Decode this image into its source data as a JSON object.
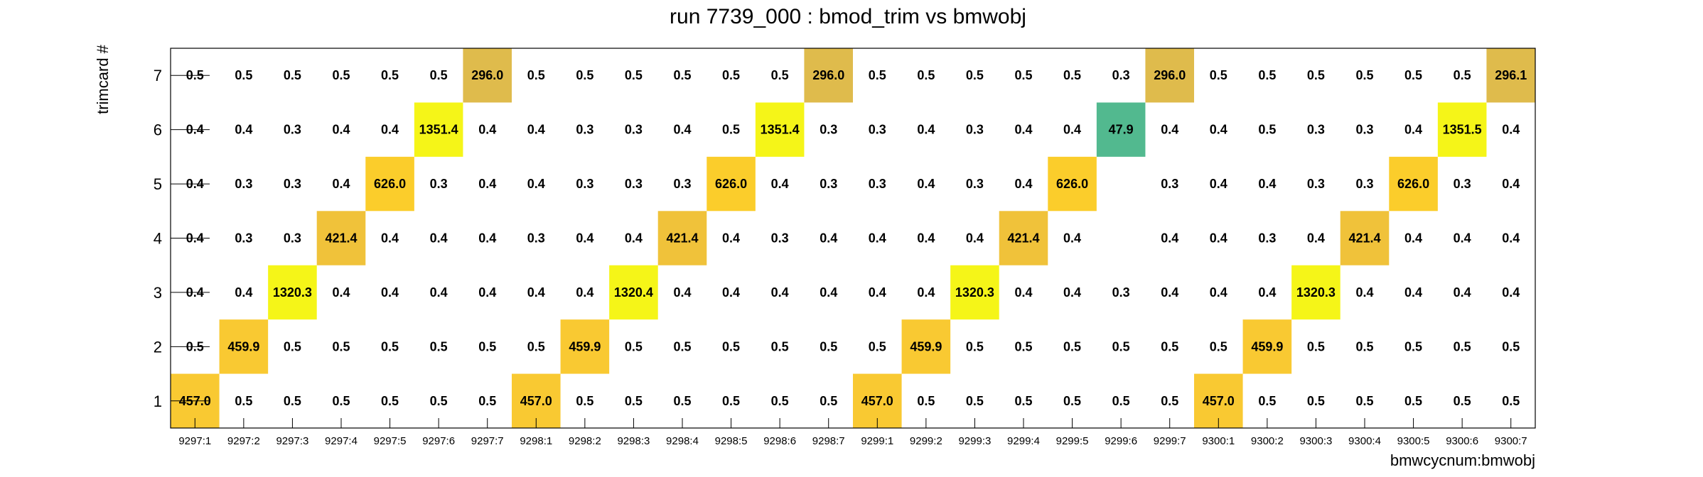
{
  "chart_data": {
    "type": "heatmap",
    "title": "run 7739_000 : bmod_trim vs bmwobj",
    "xlabel": "bmwcycnum:bmwobj",
    "ylabel": "trimcard #",
    "categories": [
      "9297:1",
      "9297:2",
      "9297:3",
      "9297:4",
      "9297:5",
      "9297:6",
      "9297:7",
      "9298:1",
      "9298:2",
      "9298:3",
      "9298:4",
      "9298:5",
      "9298:6",
      "9298:7",
      "9299:1",
      "9299:2",
      "9299:3",
      "9299:4",
      "9299:5",
      "9299:6",
      "9299:7",
      "9300:1",
      "9300:2",
      "9300:3",
      "9300:4",
      "9300:5",
      "9300:6",
      "9300:7"
    ],
    "y_categories": [
      "1",
      "2",
      "3",
      "4",
      "5",
      "6",
      "7"
    ],
    "rows": {
      "7": [
        "0.5",
        "0.5",
        "0.5",
        "0.5",
        "0.5",
        "0.5",
        "296.0",
        "0.5",
        "0.5",
        "0.5",
        "0.5",
        "0.5",
        "0.5",
        "296.0",
        "0.5",
        "0.5",
        "0.5",
        "0.5",
        "0.5",
        "0.3",
        "296.0",
        "0.5",
        "0.5",
        "0.5",
        "0.5",
        "0.5",
        "0.5",
        "296.1"
      ],
      "6": [
        "0.4",
        "0.4",
        "0.3",
        "0.4",
        "0.4",
        "1351.4",
        "0.4",
        "0.4",
        "0.3",
        "0.3",
        "0.4",
        "0.5",
        "1351.4",
        "0.3",
        "0.3",
        "0.4",
        "0.3",
        "0.4",
        "0.4",
        "47.9",
        "0.4",
        "0.4",
        "0.5",
        "0.3",
        "0.3",
        "0.4",
        "1351.5",
        "0.4"
      ],
      "5": [
        "0.4",
        "0.3",
        "0.3",
        "0.4",
        "626.0",
        "0.3",
        "0.4",
        "0.4",
        "0.3",
        "0.3",
        "0.3",
        "626.0",
        "0.4",
        "0.3",
        "0.3",
        "0.4",
        "0.3",
        "0.4",
        "626.0",
        "",
        "0.3",
        "0.4",
        "0.4",
        "0.3",
        "0.3",
        "626.0",
        "0.3",
        "0.4"
      ],
      "4": [
        "0.4",
        "0.3",
        "0.3",
        "421.4",
        "0.4",
        "0.4",
        "0.4",
        "0.3",
        "0.4",
        "0.4",
        "421.4",
        "0.4",
        "0.3",
        "0.4",
        "0.4",
        "0.4",
        "0.4",
        "421.4",
        "0.4",
        "",
        "0.4",
        "0.4",
        "0.3",
        "0.4",
        "421.4",
        "0.4",
        "0.4",
        "0.4"
      ],
      "3": [
        "0.4",
        "0.4",
        "1320.3",
        "0.4",
        "0.4",
        "0.4",
        "0.4",
        "0.4",
        "0.4",
        "1320.4",
        "0.4",
        "0.4",
        "0.4",
        "0.4",
        "0.4",
        "0.4",
        "1320.3",
        "0.4",
        "0.4",
        "0.3",
        "0.4",
        "0.4",
        "0.4",
        "1320.3",
        "0.4",
        "0.4",
        "0.4",
        "0.4"
      ],
      "2": [
        "0.5",
        "459.9",
        "0.5",
        "0.5",
        "0.5",
        "0.5",
        "0.5",
        "0.5",
        "459.9",
        "0.5",
        "0.5",
        "0.5",
        "0.5",
        "0.5",
        "0.5",
        "459.9",
        "0.5",
        "0.5",
        "0.5",
        "0.5",
        "0.5",
        "0.5",
        "459.9",
        "0.5",
        "0.5",
        "0.5",
        "0.5",
        "0.5"
      ],
      "1": [
        "457.0",
        "0.5",
        "0.5",
        "0.5",
        "0.5",
        "0.5",
        "0.5",
        "457.0",
        "0.5",
        "0.5",
        "0.5",
        "0.5",
        "0.5",
        "0.5",
        "457.0",
        "0.5",
        "0.5",
        "0.5",
        "0.5",
        "0.5",
        "0.5",
        "457.0",
        "0.5",
        "0.5",
        "0.5",
        "0.5",
        "0.5",
        "0.5"
      ]
    },
    "colors": {
      "1351": "#f5f518",
      "1320": "#f5f518",
      "626": "#fbcd2b",
      "459": "#f9c932",
      "457": "#f9c932",
      "421": "#f0c23a",
      "296": "#dfbb4c",
      "47.9": "#52b98f"
    },
    "grid": false,
    "legend": "none"
  }
}
